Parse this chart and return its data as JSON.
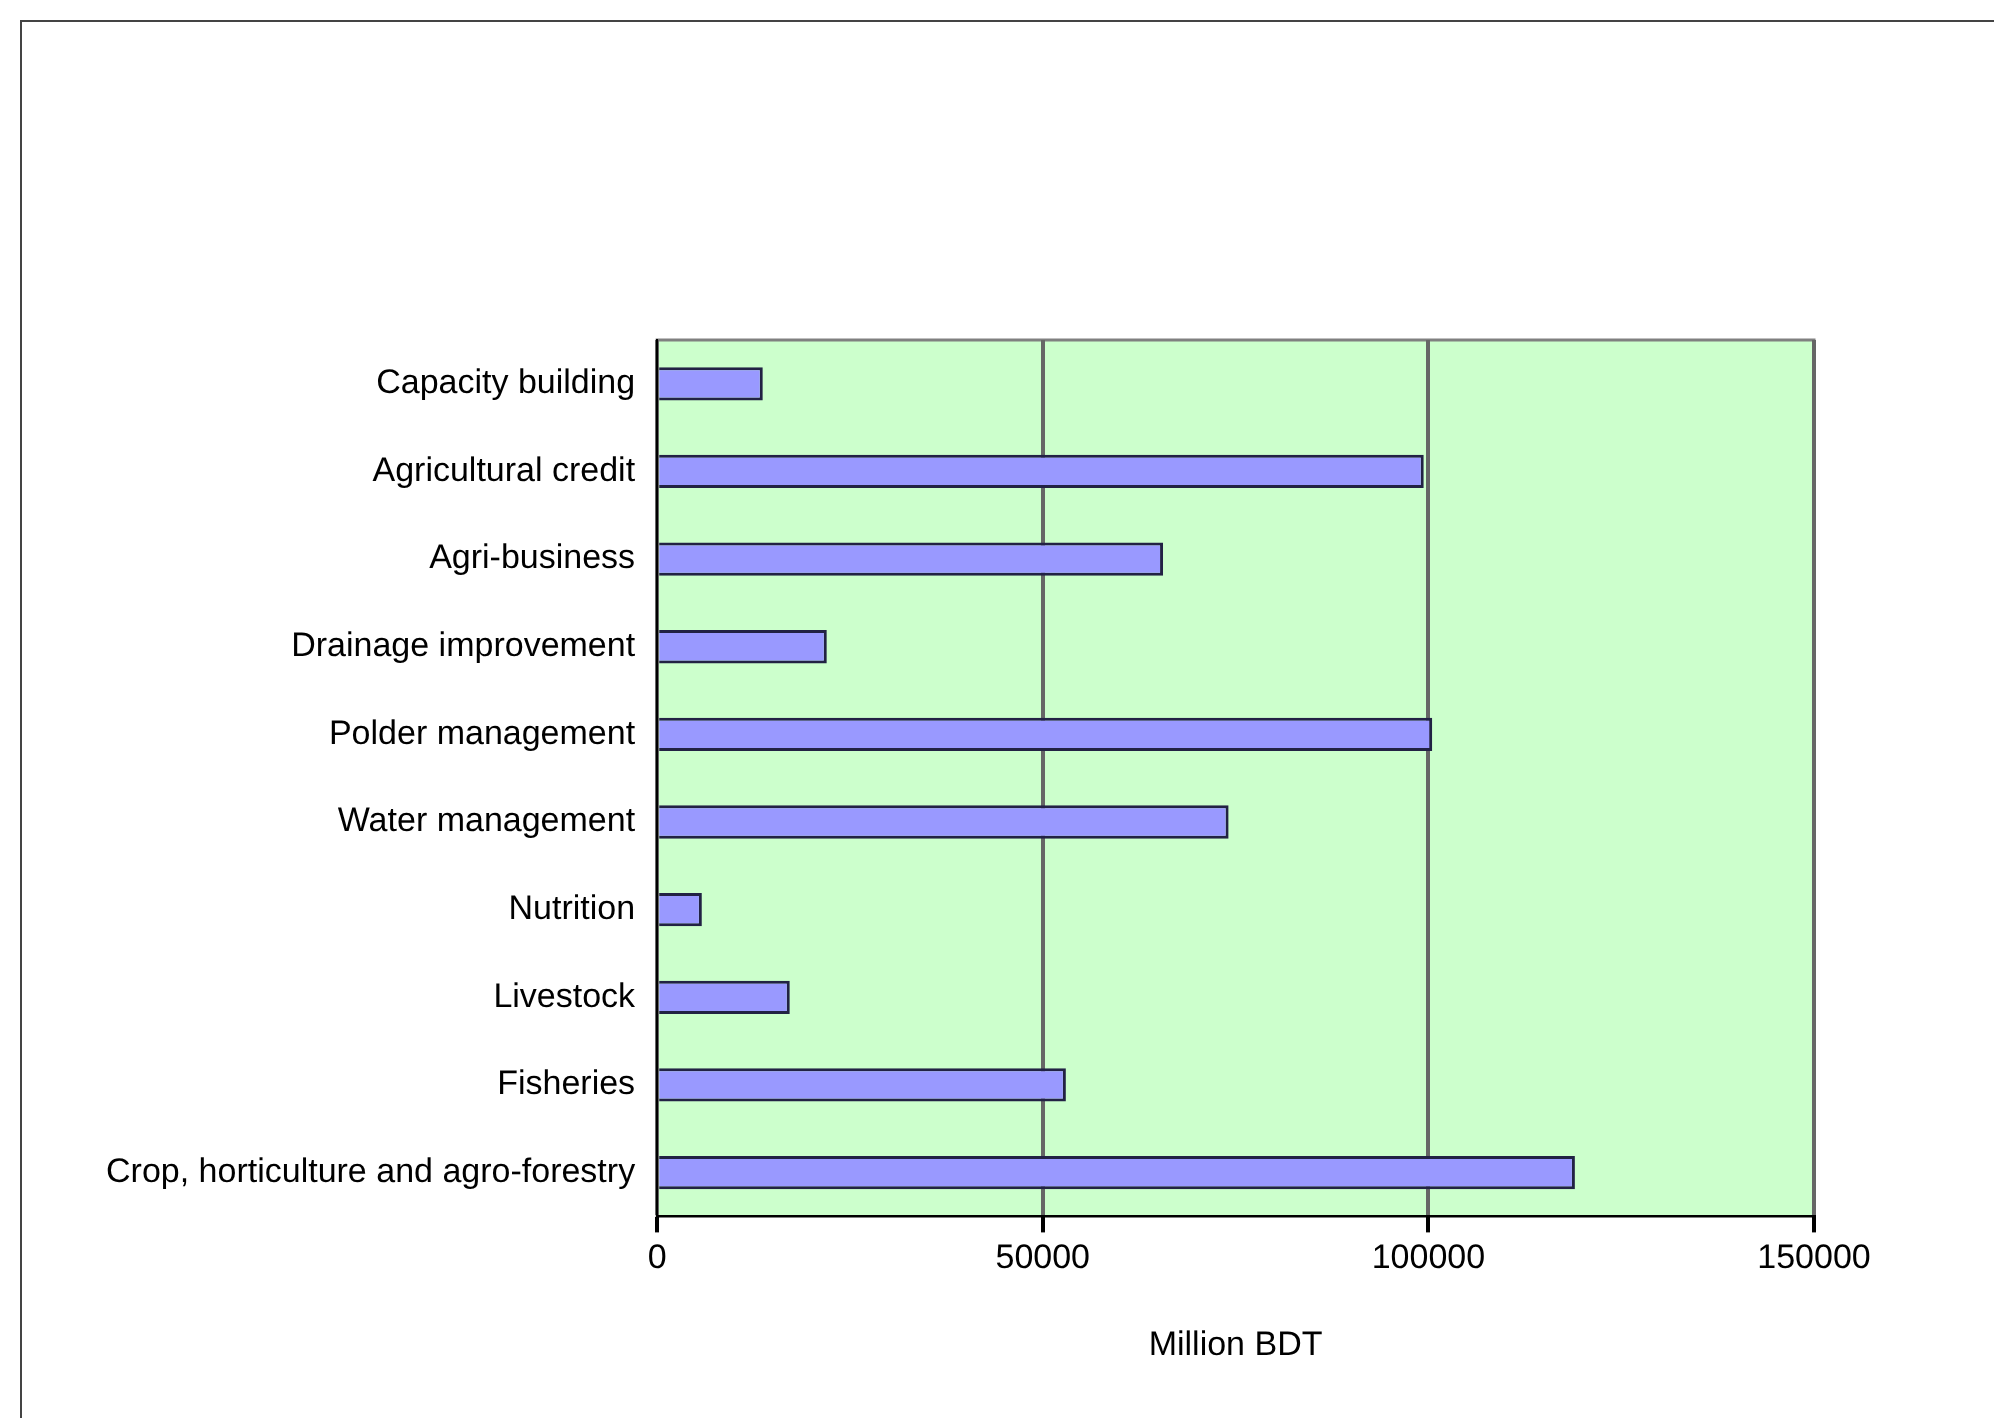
{
  "chart_data": {
    "type": "bar",
    "orientation": "horizontal",
    "xlabel": "Million BDT",
    "categories": [
      "Capacity building",
      "Agricultural credit",
      "Agri-business",
      "Drainage improvement",
      "Polder management",
      "Water management",
      "Nutrition",
      "Livestock",
      "Fisheries",
      "Crop, horticulture and agro-forestry"
    ],
    "values": [
      13700,
      99400,
      65600,
      22000,
      100500,
      74100,
      5800,
      17200,
      53000,
      119000
    ],
    "color": "#9999ff",
    "xlim": [
      0,
      150000
    ],
    "xticks": [
      0,
      50000,
      100000,
      150000
    ],
    "grid": "x",
    "legend": false
  }
}
